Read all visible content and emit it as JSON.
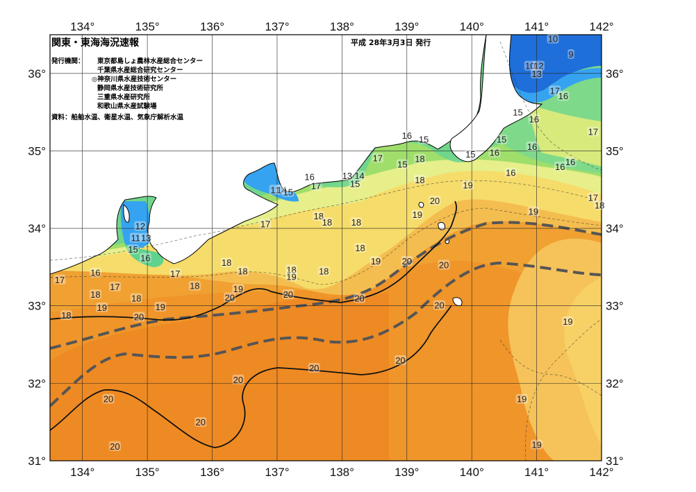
{
  "title": "関東・東海海況速報",
  "issue_date": "平成 28年3月3日 発行",
  "issuer_label": "発行機関：",
  "issuers": [
    "東京都島しょ農林水産総合センター",
    "千葉県水産総合研究センター",
    "◎神奈川県水産技術センター",
    "静岡県水産技術研究所",
    "三重県水産研究所",
    "和歌山県水産試験場"
  ],
  "source_note": "資料：船舶水温、衛星水温、気象庁解析水温",
  "axes": {
    "longitude_labels": [
      "134°",
      "135°",
      "136°",
      "137°",
      "138°",
      "139°",
      "140°",
      "141°",
      "142°"
    ],
    "latitude_labels": [
      "36°",
      "35°",
      "34°",
      "33°",
      "32°",
      "31°"
    ],
    "lon_range": [
      133.5,
      142
    ],
    "lat_range": [
      31,
      36.5
    ]
  },
  "colors": {
    "land": "#ffffff",
    "t_9_11": "#1e6fd9",
    "t_12_13": "#36a3f0",
    "t_14_15": "#5fd28e",
    "t_16": "#9fde6b",
    "t_17": "#e6ef8a",
    "t_18": "#f6dc6a",
    "t_19": "#f4bd4f",
    "t_20": "#f0a132",
    "t_21": "#ee8d24",
    "kuroshio_axis": "#555555"
  },
  "isotherm_labels": [
    {
      "text": "10",
      "lon": 141.25,
      "lat": 36.45
    },
    {
      "text": "9",
      "lon": 141.53,
      "lat": 36.25
    },
    {
      "text": "10",
      "lon": 140.9,
      "lat": 36.1
    },
    {
      "text": "12",
      "lon": 141.03,
      "lat": 36.1
    },
    {
      "text": "13",
      "lon": 141.0,
      "lat": 36.0
    },
    {
      "text": "17",
      "lon": 141.28,
      "lat": 35.78
    },
    {
      "text": "16",
      "lon": 141.41,
      "lat": 35.71
    },
    {
      "text": "15",
      "lon": 140.71,
      "lat": 35.5
    },
    {
      "text": "16",
      "lon": 140.96,
      "lat": 35.41
    },
    {
      "text": "17",
      "lon": 141.87,
      "lat": 35.25
    },
    {
      "text": "16",
      "lon": 139.0,
      "lat": 35.2
    },
    {
      "text": "15",
      "lon": 139.26,
      "lat": 35.15
    },
    {
      "text": "15",
      "lon": 140.46,
      "lat": 35.15
    },
    {
      "text": "16",
      "lon": 140.93,
      "lat": 35.06
    },
    {
      "text": "16",
      "lon": 140.35,
      "lat": 34.98
    },
    {
      "text": "15",
      "lon": 139.98,
      "lat": 34.96
    },
    {
      "text": "17",
      "lon": 138.55,
      "lat": 34.91
    },
    {
      "text": "18",
      "lon": 139.2,
      "lat": 34.9
    },
    {
      "text": "15",
      "lon": 138.93,
      "lat": 34.83
    },
    {
      "text": "16",
      "lon": 141.52,
      "lat": 34.86
    },
    {
      "text": "16",
      "lon": 141.36,
      "lat": 34.8
    },
    {
      "text": "16",
      "lon": 140.6,
      "lat": 34.72
    },
    {
      "text": "16",
      "lon": 137.5,
      "lat": 34.67
    },
    {
      "text": "13",
      "lon": 138.08,
      "lat": 34.68
    },
    {
      "text": "14",
      "lon": 138.27,
      "lat": 34.68
    },
    {
      "text": "15",
      "lon": 138.2,
      "lat": 34.58
    },
    {
      "text": "18",
      "lon": 139.2,
      "lat": 34.63
    },
    {
      "text": "17",
      "lon": 137.6,
      "lat": 34.55
    },
    {
      "text": "19",
      "lon": 139.94,
      "lat": 34.56
    },
    {
      "text": "11",
      "lon": 136.97,
      "lat": 34.5
    },
    {
      "text": "14",
      "lon": 137.07,
      "lat": 34.5
    },
    {
      "text": "15",
      "lon": 137.17,
      "lat": 34.47
    },
    {
      "text": "17",
      "lon": 141.87,
      "lat": 34.4
    },
    {
      "text": "18",
      "lon": 141.97,
      "lat": 34.3
    },
    {
      "text": "20",
      "lon": 139.43,
      "lat": 34.36
    },
    {
      "text": "12",
      "lon": 134.89,
      "lat": 34.03
    },
    {
      "text": "18",
      "lon": 137.64,
      "lat": 34.16
    },
    {
      "text": "18",
      "lon": 137.77,
      "lat": 34.08
    },
    {
      "text": "18",
      "lon": 138.22,
      "lat": 34.08
    },
    {
      "text": "19",
      "lon": 139.16,
      "lat": 34.18
    },
    {
      "text": "19",
      "lon": 140.95,
      "lat": 34.22
    },
    {
      "text": "17",
      "lon": 136.82,
      "lat": 34.06
    },
    {
      "text": "11",
      "lon": 134.82,
      "lat": 33.88
    },
    {
      "text": "13",
      "lon": 134.98,
      "lat": 33.88
    },
    {
      "text": "15",
      "lon": 134.78,
      "lat": 33.73
    },
    {
      "text": "16",
      "lon": 134.97,
      "lat": 33.62
    },
    {
      "text": "18",
      "lon": 138.28,
      "lat": 33.75
    },
    {
      "text": "19",
      "lon": 138.52,
      "lat": 33.58
    },
    {
      "text": "20",
      "lon": 139.0,
      "lat": 33.58
    },
    {
      "text": "18",
      "lon": 136.22,
      "lat": 33.56
    },
    {
      "text": "20",
      "lon": 139.57,
      "lat": 33.53
    },
    {
      "text": "18",
      "lon": 137.22,
      "lat": 33.47
    },
    {
      "text": "18",
      "lon": 137.72,
      "lat": 33.45
    },
    {
      "text": "18",
      "lon": 136.47,
      "lat": 33.45
    },
    {
      "text": "17",
      "lon": 135.43,
      "lat": 33.42
    },
    {
      "text": "16",
      "lon": 134.2,
      "lat": 33.43
    },
    {
      "text": "19",
      "lon": 137.22,
      "lat": 33.38
    },
    {
      "text": "17",
      "lon": 133.65,
      "lat": 33.34
    },
    {
      "text": "18",
      "lon": 135.73,
      "lat": 33.26
    },
    {
      "text": "17",
      "lon": 134.5,
      "lat": 33.25
    },
    {
      "text": "19",
      "lon": 136.4,
      "lat": 33.22
    },
    {
      "text": "18",
      "lon": 134.2,
      "lat": 33.15
    },
    {
      "text": "18",
      "lon": 134.83,
      "lat": 33.1
    },
    {
      "text": "20",
      "lon": 136.27,
      "lat": 33.11
    },
    {
      "text": "20",
      "lon": 137.17,
      "lat": 33.15
    },
    {
      "text": "20",
      "lon": 138.27,
      "lat": 33.1
    },
    {
      "text": "19",
      "lon": 134.3,
      "lat": 32.98
    },
    {
      "text": "19",
      "lon": 135.2,
      "lat": 32.99
    },
    {
      "text": "20",
      "lon": 139.5,
      "lat": 33.01
    },
    {
      "text": "18",
      "lon": 133.75,
      "lat": 32.88
    },
    {
      "text": "20",
      "lon": 134.87,
      "lat": 32.86
    },
    {
      "text": "19",
      "lon": 141.48,
      "lat": 32.8
    },
    {
      "text": "20",
      "lon": 138.9,
      "lat": 32.3
    },
    {
      "text": "20",
      "lon": 137.57,
      "lat": 32.2
    },
    {
      "text": "20",
      "lon": 136.4,
      "lat": 32.05
    },
    {
      "text": "20",
      "lon": 134.4,
      "lat": 31.8
    },
    {
      "text": "19",
      "lon": 140.77,
      "lat": 31.8
    },
    {
      "text": "20",
      "lon": 135.82,
      "lat": 31.5
    },
    {
      "text": "19",
      "lon": 141.0,
      "lat": 31.21
    },
    {
      "text": "20",
      "lon": 134.5,
      "lat": 31.19
    }
  ]
}
